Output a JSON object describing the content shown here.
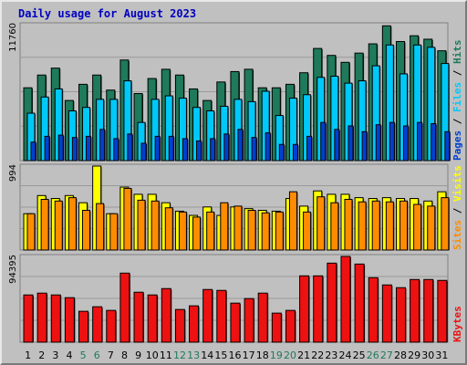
{
  "chart_data": {
    "type": "bar",
    "title": "Daily usage for August 2023",
    "categories": [
      "1",
      "2",
      "3",
      "4",
      "5",
      "6",
      "7",
      "8",
      "9",
      "10",
      "11",
      "12",
      "13",
      "14",
      "15",
      "16",
      "17",
      "18",
      "19",
      "20",
      "21",
      "22",
      "23",
      "24",
      "25",
      "26",
      "27",
      "28",
      "29",
      "30",
      "31"
    ],
    "weekend_days": [
      "5",
      "6",
      "12",
      "13",
      "19",
      "20",
      "26",
      "27"
    ],
    "panels": [
      {
        "id": "top",
        "max_label": "11760",
        "ylim": [
          0,
          11760
        ],
        "series": [
          {
            "name": "Hits",
            "color": "#1e7a5a",
            "values": [
              6300,
              7400,
              8000,
              5200,
              6600,
              7400,
              6100,
              8700,
              5800,
              7100,
              7900,
              7400,
              6200,
              5200,
              6800,
              7700,
              7900,
              6300,
              6300,
              6600,
              7600,
              9700,
              9100,
              8500,
              9300,
              10100,
              11660,
              10300,
              10800,
              10500,
              9500
            ]
          },
          {
            "name": "Files",
            "color": "#00c8f8",
            "values": [
              4100,
              5500,
              6200,
              4300,
              4600,
              5300,
              5300,
              6900,
              3300,
              5300,
              5600,
              5400,
              4600,
              4300,
              4700,
              5300,
              5100,
              6000,
              3900,
              5400,
              5700,
              7200,
              7300,
              6700,
              6900,
              8200,
              10000,
              7500,
              10000,
              9800,
              8400
            ]
          },
          {
            "name": "Pages",
            "color": "#0040d0",
            "values": [
              1600,
              2100,
              2200,
              2000,
              2100,
              2700,
              1900,
              2300,
              1500,
              2100,
              2100,
              1900,
              1700,
              1900,
              2300,
              2700,
              2000,
              2400,
              1400,
              1400,
              2100,
              3300,
              2700,
              3000,
              2500,
              3100,
              3300,
              3000,
              3300,
              3200,
              2500
            ]
          }
        ],
        "legend": [
          "Pages",
          "Files",
          "Hits"
        ]
      },
      {
        "id": "middle",
        "max_label": "994",
        "ylim": [
          0,
          994
        ],
        "series": [
          {
            "name": "Visits",
            "color": "#ffff00",
            "values": [
              430,
              645,
              610,
              645,
              560,
              994,
              430,
              745,
              660,
              660,
              560,
              460,
              410,
              510,
              410,
              510,
              490,
              470,
              460,
              610,
              520,
              700,
              660,
              660,
              620,
              610,
              620,
              610,
              610,
              580,
              690
            ]
          },
          {
            "name": "Sites",
            "color": "#ff8c00",
            "values": [
              430,
              600,
              580,
              620,
              470,
              550,
              430,
              730,
              590,
              580,
              500,
              450,
              390,
              450,
              560,
              520,
              470,
              440,
              450,
              690,
              450,
              630,
              560,
              600,
              570,
              580,
              570,
              580,
              540,
              520,
              620
            ]
          }
        ],
        "legend": [
          "Sites",
          "Visits"
        ]
      },
      {
        "id": "bottom",
        "max_label": "94395",
        "ylim": [
          0,
          94395
        ],
        "series": [
          {
            "name": "KBytes",
            "color": "#ee1111",
            "values": [
              52000,
              54000,
              52000,
              49000,
              34000,
              39000,
              35000,
              76000,
              55000,
              52000,
              59000,
              36000,
              40000,
              58000,
              57000,
              43000,
              48000,
              54000,
              32000,
              35000,
              73000,
              73000,
              87000,
              94395,
              86000,
              71000,
              63000,
              60000,
              69000,
              69000,
              68000
            ]
          }
        ],
        "legend": [
          "KBytes"
        ]
      }
    ]
  }
}
